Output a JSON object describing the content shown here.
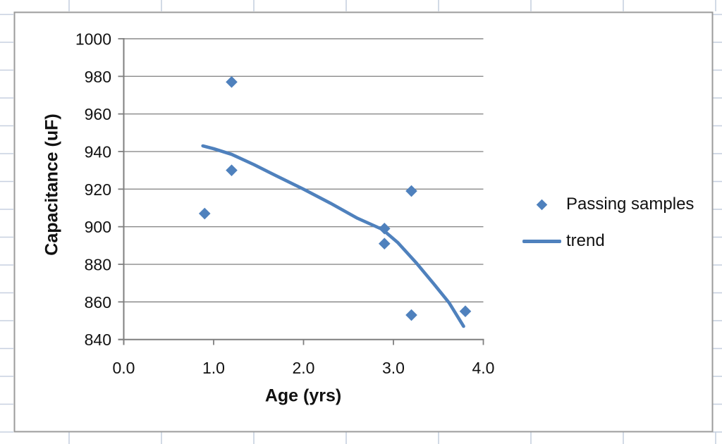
{
  "chart_data": {
    "type": "scatter",
    "title": "",
    "xlabel": "Age (yrs)",
    "ylabel": "Capacitance (uF)",
    "xlim": [
      0.0,
      4.0
    ],
    "ylim": [
      840,
      1000
    ],
    "grid": "horizontal",
    "legend_position": "right",
    "x_tick_values": [
      0,
      1,
      2,
      3,
      4
    ],
    "x_tick_labels": [
      "0.0",
      "1.0",
      "2.0",
      "3.0",
      "4.0"
    ],
    "y_tick_values": [
      1000,
      980,
      960,
      940,
      920,
      900,
      880,
      860,
      840
    ],
    "y_tick_labels": [
      "1000",
      "980",
      "960",
      "940",
      "920",
      "900",
      "880",
      "860",
      "840"
    ],
    "series": [
      {
        "name": "Passing samples",
        "kind": "scatter",
        "marker": "diamond",
        "color": "#4F81BD",
        "points": [
          [
            0.9,
            907
          ],
          [
            1.2,
            977
          ],
          [
            1.2,
            930
          ],
          [
            2.9,
            899
          ],
          [
            2.9,
            891
          ],
          [
            3.2,
            919
          ],
          [
            3.2,
            853
          ],
          [
            3.8,
            855
          ]
        ]
      },
      {
        "name": "trend",
        "kind": "line",
        "color": "#4F81BD",
        "points": [
          [
            0.88,
            943
          ],
          [
            1.0,
            941.5
          ],
          [
            1.2,
            938.5
          ],
          [
            1.45,
            933
          ],
          [
            1.7,
            927
          ],
          [
            2.0,
            920
          ],
          [
            2.3,
            912.5
          ],
          [
            2.6,
            904.5
          ],
          [
            2.88,
            898.5
          ],
          [
            3.05,
            891.5
          ],
          [
            3.25,
            881
          ],
          [
            3.45,
            869.5
          ],
          [
            3.62,
            859.5
          ],
          [
            3.78,
            847
          ]
        ]
      }
    ]
  },
  "colors": {
    "series": "#4F81BD",
    "gridline": "#8a8a8a",
    "axis": "#7f7f7f",
    "chart_border": "#9b9b9b",
    "sheet_marks": "#c7d0e0",
    "text": "#111111"
  }
}
